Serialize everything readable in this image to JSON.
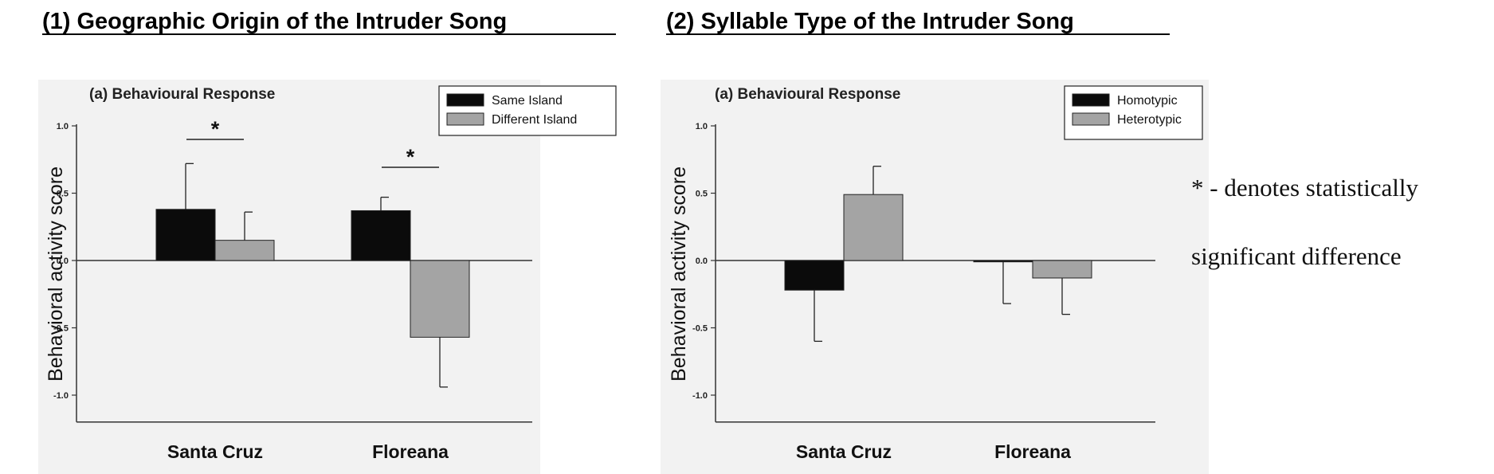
{
  "headings": [
    "(1) Geographic Origin of the Intruder Song",
    "(2) Syllable Type of the Intruder Song"
  ],
  "note": {
    "line1": "* - denotes statistically",
    "line2": "significant difference"
  },
  "colors": {
    "series_a": "#0b0b0b",
    "series_b": "#a4a4a4",
    "panel_background": "#f2f2f2"
  },
  "chart_data": [
    {
      "type": "bar",
      "title": "(a) Behavioural Response",
      "ylabel": "Behavioral activity score",
      "xlabel": "",
      "ylim": [
        -1.2,
        1.0
      ],
      "yticks": [
        "1.0",
        "0.5",
        "0.0",
        "-0.5",
        "-1.0"
      ],
      "categories": [
        "Santa Cruz",
        "Floreana"
      ],
      "legend_position": "top-right",
      "series": [
        {
          "name": "Same Island",
          "values": [
            0.38,
            0.37
          ],
          "errors": [
            0.34,
            0.1
          ]
        },
        {
          "name": "Different Island",
          "values": [
            0.15,
            -0.57
          ],
          "errors": [
            0.21,
            0.37
          ]
        }
      ],
      "significance": [
        {
          "category": "Santa Cruz",
          "label": "*"
        },
        {
          "category": "Floreana",
          "label": "*"
        }
      ]
    },
    {
      "type": "bar",
      "title": "(a) Behavioural Response",
      "ylabel": "Behavioral activity score",
      "xlabel": "",
      "ylim": [
        -1.2,
        1.0
      ],
      "yticks": [
        "1.0",
        "0.5",
        "0.0",
        "-0.5",
        "-1.0"
      ],
      "categories": [
        "Santa Cruz",
        "Floreana"
      ],
      "legend_position": "top-right",
      "series": [
        {
          "name": "Homotypic",
          "values": [
            -0.22,
            -0.01
          ],
          "errors": [
            0.38,
            0.31
          ]
        },
        {
          "name": "Heterotypic",
          "values": [
            0.49,
            -0.13
          ],
          "errors": [
            0.21,
            0.27
          ]
        }
      ],
      "significance": []
    }
  ]
}
